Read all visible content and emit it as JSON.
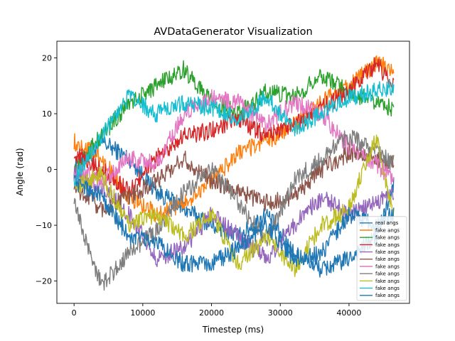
{
  "chart_data": {
    "type": "line",
    "title": "AVDataGenerator Visualization",
    "xlabel": "Timestep (ms)",
    "ylabel": "Angle (rad)",
    "xlim": [
      -2500,
      48800
    ],
    "ylim": [
      -24,
      23
    ],
    "xticks": [
      0,
      10000,
      20000,
      30000,
      40000
    ],
    "xtick_labels": [
      "0",
      "10000",
      "20000",
      "30000",
      "40000"
    ],
    "yticks": [
      -20,
      -10,
      0,
      10,
      20
    ],
    "ytick_labels": [
      "−20",
      "−10",
      "0",
      "10",
      "20"
    ],
    "grid": false,
    "legend_position": "lower-right",
    "series": [
      {
        "name": "real angs",
        "color": "#1f77b4",
        "x": [
          0,
          4000,
          8000,
          12000,
          16000,
          20000,
          24000,
          28000,
          32000,
          36000,
          40000,
          44000,
          46500
        ],
        "values": [
          0,
          5,
          2,
          -4,
          -7,
          -10,
          -12,
          -8,
          -15,
          -18,
          -16,
          -12,
          -3
        ]
      },
      {
        "name": "fake angs",
        "color": "#ff7f0e",
        "x": [
          0,
          4000,
          8000,
          12000,
          16000,
          20000,
          24000,
          28000,
          32000,
          36000,
          40000,
          44000,
          46500
        ],
        "values": [
          5,
          2,
          -5,
          -8,
          -6,
          -2,
          3,
          5,
          8,
          12,
          15,
          19,
          18
        ]
      },
      {
        "name": "fake angs",
        "color": "#2ca02c",
        "x": [
          0,
          4000,
          8000,
          12000,
          16000,
          20000,
          24000,
          28000,
          32000,
          36000,
          40000,
          44000,
          46500
        ],
        "values": [
          0,
          6,
          12,
          15,
          18,
          12,
          10,
          14,
          13,
          17,
          14,
          12,
          11
        ]
      },
      {
        "name": "fake angs",
        "color": "#d62728",
        "x": [
          0,
          4000,
          8000,
          12000,
          16000,
          20000,
          24000,
          28000,
          32000,
          36000,
          40000,
          44000,
          46500
        ],
        "values": [
          3,
          0,
          -4,
          2,
          6,
          7,
          9,
          6,
          8,
          11,
          14,
          19,
          15
        ]
      },
      {
        "name": "fake angs",
        "color": "#9467bd",
        "x": [
          0,
          4000,
          8000,
          12000,
          16000,
          20000,
          24000,
          28000,
          32000,
          36000,
          40000,
          44000,
          46500
        ],
        "values": [
          -1,
          -3,
          -8,
          -16,
          -14,
          -8,
          -12,
          -16,
          -10,
          -5,
          -8,
          -6,
          -4
        ]
      },
      {
        "name": "fake angs",
        "color": "#8c564b",
        "x": [
          0,
          4000,
          8000,
          12000,
          16000,
          20000,
          24000,
          28000,
          32000,
          36000,
          40000,
          44000,
          46500
        ],
        "values": [
          -3,
          -7,
          -5,
          -2,
          2,
          -2,
          -4,
          -6,
          -5,
          0,
          3,
          2,
          1
        ]
      },
      {
        "name": "fake angs",
        "color": "#e377c2",
        "x": [
          0,
          4000,
          8000,
          12000,
          16000,
          20000,
          24000,
          28000,
          32000,
          36000,
          40000,
          44000,
          46500
        ],
        "values": [
          0,
          -2,
          2,
          1,
          10,
          13,
          12,
          8,
          12,
          10,
          4,
          1,
          -2
        ]
      },
      {
        "name": "fake angs",
        "color": "#7f7f7f",
        "x": [
          0,
          4000,
          8000,
          12000,
          16000,
          20000,
          24000,
          28000,
          32000,
          36000,
          40000,
          44000,
          46500
        ],
        "values": [
          -6,
          -21,
          -15,
          -11,
          -4,
          0,
          -6,
          -13,
          -2,
          2,
          6,
          3,
          1
        ]
      },
      {
        "name": "fake angs",
        "color": "#bcbd22",
        "x": [
          0,
          4000,
          8000,
          12000,
          16000,
          20000,
          24000,
          28000,
          32000,
          36000,
          40000,
          44000,
          46500
        ],
        "values": [
          -3,
          -1,
          -10,
          -8,
          -12,
          -8,
          -17,
          -12,
          -18,
          -10,
          -7,
          6,
          -9
        ]
      },
      {
        "name": "fake angs",
        "color": "#17becf",
        "x": [
          0,
          4000,
          8000,
          12000,
          16000,
          20000,
          24000,
          28000,
          32000,
          36000,
          40000,
          44000,
          46500
        ],
        "values": [
          -2,
          6,
          13,
          10,
          12,
          11,
          9,
          13,
          7,
          10,
          13,
          14,
          15
        ]
      },
      {
        "name": "fake angs",
        "color": "#1f77b4",
        "x": [
          0,
          4000,
          8000,
          12000,
          16000,
          20000,
          24000,
          28000,
          32000,
          36000,
          40000,
          44000,
          46500
        ],
        "values": [
          -2,
          -5,
          -12,
          -13,
          -17,
          -17,
          -14,
          -10,
          -16,
          -15,
          -8,
          -10,
          -8
        ]
      }
    ]
  }
}
